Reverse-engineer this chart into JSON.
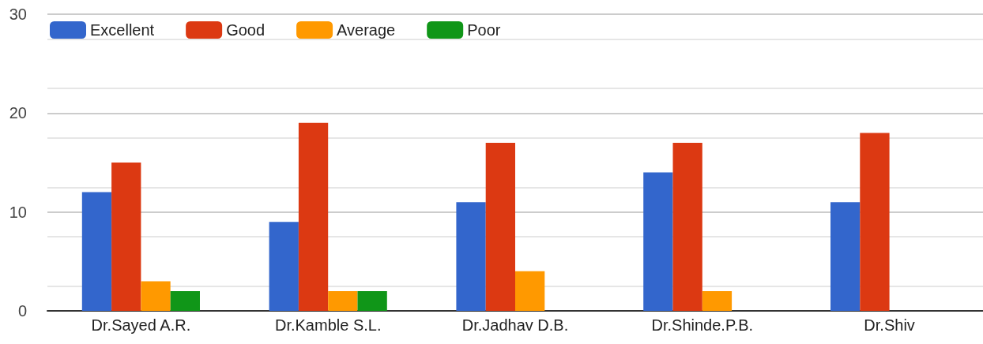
{
  "chart_data": {
    "type": "bar",
    "categories": [
      "Dr.Sayed A.R.",
      "Dr.Kamble S.L.",
      "Dr.Jadhav D.B.",
      "Dr.Shinde.P.B.",
      "Dr.Shiv"
    ],
    "series": [
      {
        "name": "Excellent",
        "color": "#3366cc",
        "values": [
          12,
          9,
          11,
          14,
          11
        ]
      },
      {
        "name": "Good",
        "color": "#dc3912",
        "values": [
          15,
          19,
          17,
          17,
          18
        ]
      },
      {
        "name": "Average",
        "color": "#ff9900",
        "values": [
          3,
          2,
          4,
          2,
          null
        ]
      },
      {
        "name": "Poor",
        "color": "#109618",
        "values": [
          2,
          2,
          0,
          0,
          null
        ]
      }
    ],
    "ylim": [
      0,
      30
    ],
    "yticks": [
      0,
      10,
      20,
      30
    ],
    "grid": "y",
    "legend": "top left"
  }
}
